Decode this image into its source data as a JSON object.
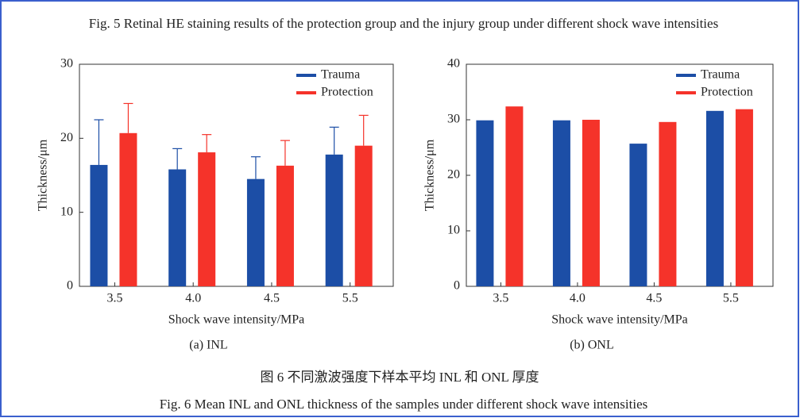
{
  "caption_top": "Fig. 5    Retinal HE staining results of the protection group and the injury group under different shock wave intensities",
  "chart_data": [
    {
      "type": "bar",
      "subtitle": "(a) INL",
      "x_label": "Shock wave intensity/MPa",
      "y_label": "Thickness/μm",
      "categories": [
        "3.5",
        "4.0",
        "4.5",
        "5.5"
      ],
      "series": [
        {
          "name": "Trauma",
          "color": "#1c4ea6",
          "values": [
            16.4,
            15.8,
            14.5,
            17.8
          ],
          "errors": [
            6.1,
            2.8,
            3.0,
            3.7
          ]
        },
        {
          "name": "Protection",
          "color": "#f5332a",
          "values": [
            20.7,
            18.1,
            16.3,
            19.0
          ],
          "errors": [
            4.0,
            2.4,
            3.4,
            4.1
          ]
        }
      ],
      "ylim": [
        0,
        30
      ],
      "yticks": [
        0,
        10,
        20,
        30
      ],
      "legend": "upper right"
    },
    {
      "type": "bar",
      "subtitle": "(b) ONL",
      "x_label": "Shock wave intensity/MPa",
      "y_label": "Thickness/μm",
      "categories": [
        "3.5",
        "4.0",
        "4.5",
        "5.5"
      ],
      "series": [
        {
          "name": "Trauma",
          "color": "#1c4ea6",
          "values": [
            29.9,
            29.9,
            25.7,
            31.6
          ]
        },
        {
          "name": "Protection",
          "color": "#f5332a",
          "values": [
            32.4,
            30.0,
            29.6,
            31.9
          ]
        }
      ],
      "ylim": [
        0,
        40
      ],
      "yticks": [
        0,
        10,
        20,
        30,
        40
      ],
      "legend": "upper right"
    }
  ],
  "caption_cn": "图 6    不同激波强度下样本平均 INL 和 ONL 厚度",
  "caption_en": "Fig. 6    Mean INL and ONL thickness of the samples under different shock wave intensities"
}
